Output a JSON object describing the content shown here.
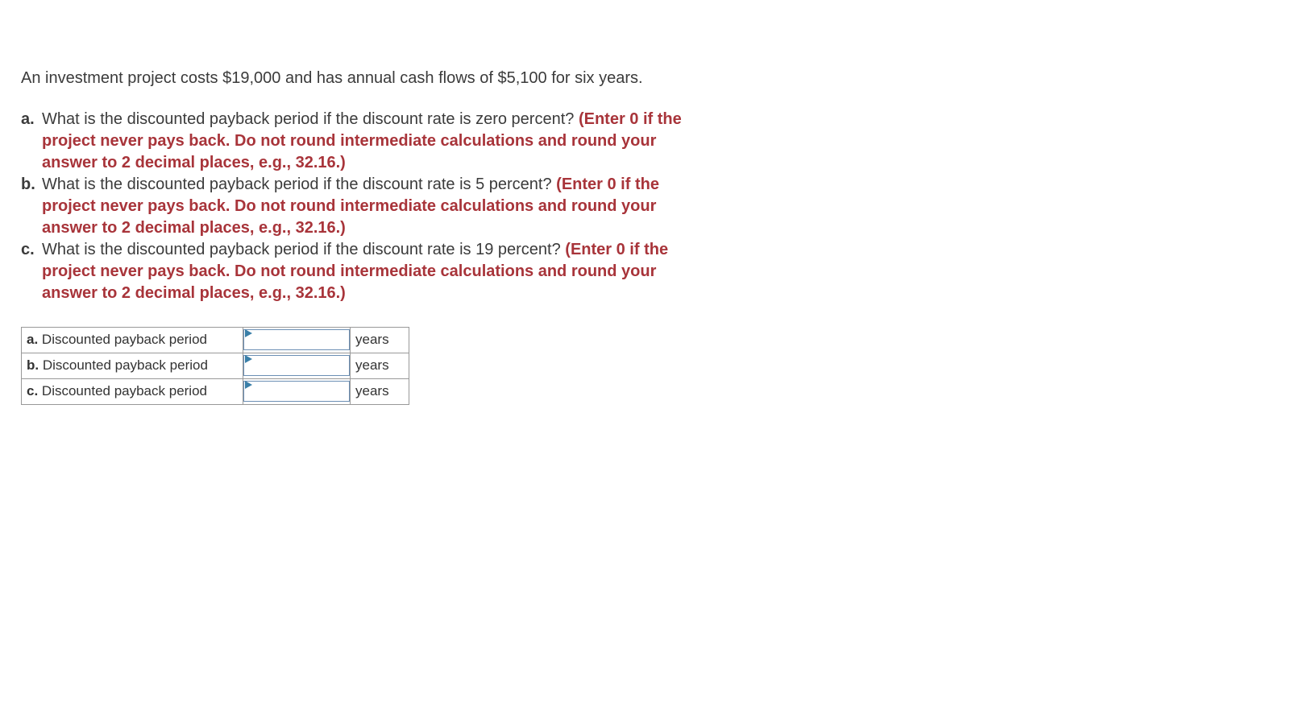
{
  "colors": {
    "text": "#3b3b3b",
    "redBold": "#a8343a",
    "tableBorder": "#999999",
    "inputBorder": "#6b8fb4",
    "indicator": "#3a7fa8",
    "background": "#ffffff"
  },
  "typography": {
    "bodyFontSize": 20,
    "tableFontSize": 17,
    "lineHeight": 1.35
  },
  "intro": "An investment project costs $19,000 and has annual cash flows of $5,100 for six years.",
  "questions": [
    {
      "letter": "a.",
      "text": "What is the discounted payback period if the discount rate is zero percent? ",
      "note": "(Enter 0 if the project never pays back. Do not round intermediate calculations and round your answer to 2 decimal places, e.g., 32.16.)"
    },
    {
      "letter": "b.",
      "text": "What is the discounted payback period if the discount rate is 5 percent? ",
      "note": "(Enter 0 if the project never pays back. Do not round intermediate calculations and round your answer to 2 decimal places, e.g., 32.16.)"
    },
    {
      "letter": "c.",
      "text": "What is the discounted payback period if the discount rate is 19 percent? ",
      "note": "(Enter 0 if the project never pays back. Do not round intermediate calculations and round your answer to 2 decimal places, e.g., 32.16.)"
    }
  ],
  "answerTable": {
    "rows": [
      {
        "letter": "a.",
        "label": "Discounted payback period",
        "value": "",
        "unit": "years"
      },
      {
        "letter": "b.",
        "label": "Discounted payback period",
        "value": "",
        "unit": "years"
      },
      {
        "letter": "c.",
        "label": "Discounted payback period",
        "value": "",
        "unit": "years"
      }
    ]
  }
}
